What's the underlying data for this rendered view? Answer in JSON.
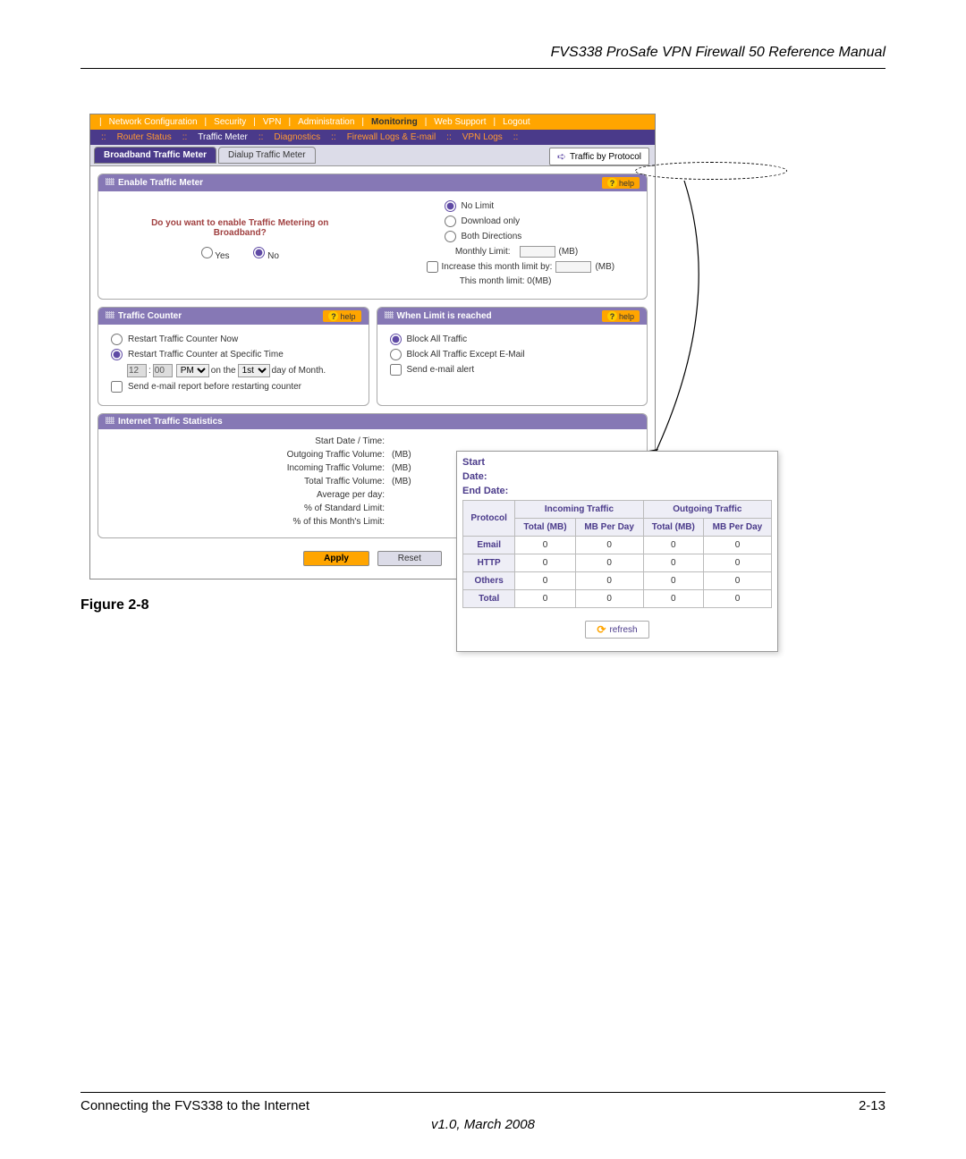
{
  "header": {
    "title": "FVS338 ProSafe VPN Firewall 50 Reference Manual"
  },
  "nav_main": {
    "items": [
      "Network Configuration",
      "Security",
      "VPN",
      "Administration",
      "Monitoring",
      "Web Support",
      "Logout"
    ]
  },
  "nav_sub": {
    "items": [
      "Router Status",
      "Traffic Meter",
      "Diagnostics",
      "Firewall Logs & E-mail",
      "VPN Logs"
    ]
  },
  "tabs": {
    "active": "Broadband Traffic Meter",
    "inactive": "Dialup Traffic Meter",
    "protocol_link": "Traffic by Protocol"
  },
  "panels": {
    "enable": {
      "title": "Enable Traffic Meter",
      "question_l1": "Do you want to enable Traffic Metering on",
      "question_l2": "Broadband?",
      "yes": "Yes",
      "no": "No",
      "no_limit": "No Limit",
      "download_only": "Download only",
      "both": "Both Directions",
      "monthly_label": "Monthly Limit:",
      "mb_unit": "(MB)",
      "increase_label": "Increase this month limit by:",
      "this_month": "This month limit:  0(MB)"
    },
    "counter": {
      "title": "Traffic Counter",
      "opt1": "Restart Traffic Counter Now",
      "opt2": "Restart Traffic Counter at Specific Time",
      "time_h": "12",
      "time_m": "00",
      "ampm": "PM",
      "on_the": "on the",
      "day_sel": "1st",
      "day_of": "day of Month.",
      "opt3": "Send e-mail report before restarting counter"
    },
    "limit": {
      "title": "When Limit is reached",
      "opt1": "Block All Traffic",
      "opt2": "Block All Traffic Except E-Mail",
      "opt3": "Send e-mail alert"
    },
    "stats": {
      "title": "Internet Traffic Statistics",
      "lines": [
        {
          "label": "Start Date / Time:",
          "val": ""
        },
        {
          "label": "Outgoing Traffic Volume:",
          "val": "(MB)"
        },
        {
          "label": "Incoming Traffic Volume:",
          "val": "(MB)"
        },
        {
          "label": "Total Traffic Volume:",
          "val": "(MB)"
        },
        {
          "label": "Average per day:",
          "val": ""
        },
        {
          "label": "% of Standard Limit:",
          "val": ""
        },
        {
          "label": "% of this Month's Limit:",
          "val": ""
        }
      ]
    },
    "help": "help"
  },
  "buttons": {
    "apply": "Apply",
    "reset": "Reset",
    "refresh": "refresh"
  },
  "popup": {
    "start_label": "Start",
    "date_label": "Date:",
    "end_label": "End Date:",
    "protocol_h": "Protocol",
    "incoming_h": "Incoming Traffic",
    "outgoing_h": "Outgoing Traffic",
    "total_mb": "Total (MB)",
    "mb_day": "MB Per Day",
    "rows": [
      {
        "p": "Email",
        "it": "0",
        "id": "0",
        "ot": "0",
        "od": "0"
      },
      {
        "p": "HTTP",
        "it": "0",
        "id": "0",
        "ot": "0",
        "od": "0"
      },
      {
        "p": "Others",
        "it": "0",
        "id": "0",
        "ot": "0",
        "od": "0"
      },
      {
        "p": "Total",
        "it": "0",
        "id": "0",
        "ot": "0",
        "od": "0"
      }
    ]
  },
  "figure_label": "Figure 2-8",
  "footer": {
    "left": "Connecting the FVS338 to the Internet",
    "right": "2-13",
    "version": "v1.0, March 2008"
  },
  "colors": {
    "orange": "#ffa500",
    "purple": "#4a3a8a",
    "lavender": "#8678b5",
    "tab_bg": "#dcdce8"
  }
}
